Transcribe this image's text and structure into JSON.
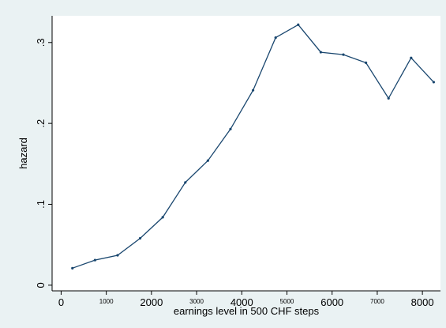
{
  "chart_data": {
    "type": "line",
    "title": "",
    "xlabel": "earnings level in 500 CHF steps",
    "ylabel": "hazard",
    "xlim": [
      -200,
      8400
    ],
    "ylim": [
      -0.007,
      0.333
    ],
    "grid": false,
    "legend": "none",
    "colors": {
      "line": "#1a476f",
      "plot_bg": "#ffffff",
      "outer_bg": "#eaf2f3"
    },
    "x_ticks": [
      {
        "value": 0,
        "label": "0",
        "size": "large"
      },
      {
        "value": 1000,
        "label": "1000",
        "size": "small"
      },
      {
        "value": 2000,
        "label": "2000",
        "size": "large"
      },
      {
        "value": 3000,
        "label": "3000",
        "size": "small"
      },
      {
        "value": 4000,
        "label": "4000",
        "size": "large"
      },
      {
        "value": 5000,
        "label": "5000",
        "size": "small"
      },
      {
        "value": 6000,
        "label": "6000",
        "size": "large"
      },
      {
        "value": 7000,
        "label": "7000",
        "size": "small"
      },
      {
        "value": 8000,
        "label": "8000",
        "size": "large"
      }
    ],
    "y_ticks": [
      {
        "value": 0,
        "label": "0"
      },
      {
        "value": 0.1,
        "label": ".1"
      },
      {
        "value": 0.2,
        "label": ".2"
      },
      {
        "value": 0.3,
        "label": ".3"
      }
    ],
    "series": [
      {
        "x": [
          250,
          750,
          1250,
          1750,
          2250,
          2750,
          3250,
          3750,
          4250,
          4750,
          5250,
          5750,
          6250,
          6750,
          7250,
          7750,
          8250
        ],
        "y": [
          0.021,
          0.031,
          0.037,
          0.058,
          0.084,
          0.127,
          0.154,
          0.193,
          0.241,
          0.306,
          0.322,
          0.288,
          0.285,
          0.275,
          0.231,
          0.281,
          0.251
        ]
      }
    ]
  }
}
